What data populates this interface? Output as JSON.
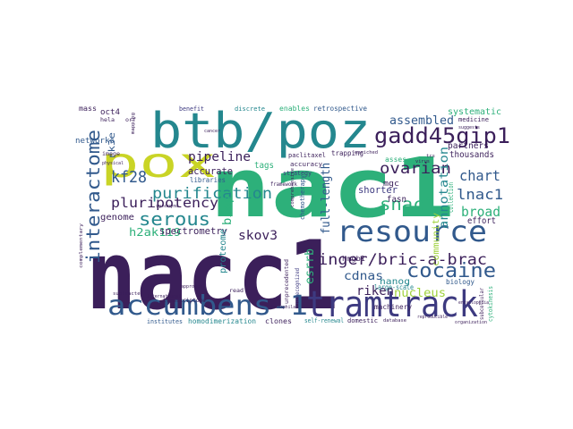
{
  "colors": {
    "background": "#ffffff",
    "palette_note": "viridis",
    "purple": "#3b1f5a",
    "indigo": "#3d3a80",
    "blue": "#31598c",
    "teal": "#24878e",
    "green": "#2db07a",
    "lime": "#9fd23c",
    "yellow": "#c9d426"
  },
  "words": [
    {
      "text": "nacc1",
      "color": "#3b1f5a"
    },
    {
      "text": "nac1",
      "color": "#2db07a"
    },
    {
      "text": "btb/poz",
      "color": "#24878e"
    },
    {
      "text": "pox",
      "color": "#c9d426"
    },
    {
      "text": "tramtrack",
      "color": "#3d3a80"
    },
    {
      "text": "accumbens-1",
      "color": "#31598c"
    },
    {
      "text": "resource",
      "color": "#31598c"
    },
    {
      "text": "gadd45gip1",
      "color": "#3b1f5a"
    },
    {
      "text": "interactome",
      "color": "#31598c"
    },
    {
      "text": "cocaine",
      "color": "#31598c"
    },
    {
      "text": "finger/bric-a-brac",
      "color": "#3b1f5a"
    },
    {
      "text": "purification",
      "color": "#24878e"
    },
    {
      "text": "serous",
      "color": "#24878e"
    },
    {
      "text": "ovarian",
      "color": "#3b1f5a"
    },
    {
      "text": "pluripotency",
      "color": "#3b1f5a"
    },
    {
      "text": "snac1",
      "color": "#2db07a"
    },
    {
      "text": "lnac1",
      "color": "#31598c"
    },
    {
      "text": "kf28",
      "color": "#31598c"
    },
    {
      "text": "chart",
      "color": "#31598c"
    },
    {
      "text": "annotation",
      "color": "#24878e"
    },
    {
      "text": "broad",
      "color": "#2db07a"
    },
    {
      "text": "pipeline",
      "color": "#3b1f5a"
    },
    {
      "text": "assembled",
      "color": "#31598c"
    },
    {
      "text": "skov3",
      "color": "#3b1f5a"
    },
    {
      "text": "bioplex",
      "color": "#2db07a"
    },
    {
      "text": "esrrb",
      "color": "#2db07a"
    },
    {
      "text": "h2ak119",
      "color": "#2db07a"
    },
    {
      "text": "nucleus",
      "color": "#9fd23c"
    },
    {
      "text": "riken",
      "color": "#3b1f5a"
    },
    {
      "text": "cdnas",
      "color": "#31598c"
    },
    {
      "text": "full-length",
      "color": "#31598c"
    },
    {
      "text": "shorter",
      "color": "#3d3a80"
    },
    {
      "text": "community",
      "color": "#9fd23c"
    },
    {
      "text": "nanog",
      "color": "#24878e"
    },
    {
      "text": "accurate",
      "color": "#3b1f5a"
    },
    {
      "text": "spectrometry",
      "color": "#3b1f5a"
    },
    {
      "text": "proteome",
      "color": "#24878e"
    },
    {
      "text": "genome",
      "color": "#3b1f5a"
    },
    {
      "text": "systematic",
      "color": "#2db07a"
    },
    {
      "text": "thousands",
      "color": "#3b1f5a"
    },
    {
      "text": "partners",
      "color": "#3b1f5a"
    },
    {
      "text": "effort",
      "color": "#3b1f5a"
    },
    {
      "text": "fasn",
      "color": "#3b1f5a"
    },
    {
      "text": "tags",
      "color": "#2db07a"
    },
    {
      "text": "mgc",
      "color": "#3b1f5a"
    },
    {
      "text": "rk3e",
      "color": "#31598c"
    },
    {
      "text": "networks",
      "color": "#31598c"
    },
    {
      "text": "oct4",
      "color": "#3b1f5a"
    },
    {
      "text": "libraries",
      "color": "#31598c"
    },
    {
      "text": "collection",
      "color": "#2db07a"
    },
    {
      "text": "hmgb1",
      "color": "#3b1f5a"
    },
    {
      "text": "machinery",
      "color": "#3b1f5a"
    },
    {
      "text": "large-scale",
      "color": "#24878e"
    },
    {
      "text": "biology",
      "color": "#31598c"
    },
    {
      "text": "enables",
      "color": "#2db07a"
    },
    {
      "text": "retrospective",
      "color": "#31598c"
    },
    {
      "text": "mass",
      "color": "#3b1f5a"
    },
    {
      "text": "benefit",
      "color": "#3d3a80"
    },
    {
      "text": "discrete",
      "color": "#24878e"
    },
    {
      "text": "medicine",
      "color": "#3b1f5a"
    },
    {
      "text": "paclitaxel",
      "color": "#3b1f5a"
    },
    {
      "text": "trapping",
      "color": "#3b1f5a"
    },
    {
      "text": "asses",
      "color": "#2db07a"
    },
    {
      "text": "accuracy",
      "color": "#3b1f5a"
    },
    {
      "text": "strategy",
      "color": "#3d3a80"
    },
    {
      "text": "chemotherapy",
      "color": "#31598c"
    },
    {
      "text": "framework",
      "color": "#3b1f5a"
    },
    {
      "text": "clones",
      "color": "#3b1f5a"
    },
    {
      "text": "homodimerization",
      "color": "#24878e"
    },
    {
      "text": "institutes",
      "color": "#31598c"
    },
    {
      "text": "domestic",
      "color": "#3b1f5a"
    },
    {
      "text": "self-renewal",
      "color": "#24878e"
    },
    {
      "text": "cytokinesis",
      "color": "#2db07a"
    },
    {
      "text": "subcellular",
      "color": "#3b1f5a"
    },
    {
      "text": "unrecognized",
      "color": "#3d3a80"
    },
    {
      "text": "transcriptome",
      "color": "#3b1f5a"
    },
    {
      "text": "read",
      "color": "#3b1f5a"
    },
    {
      "text": "image",
      "color": "#3b1f5a"
    },
    {
      "text": "hela",
      "color": "#3b1f5a"
    },
    {
      "text": "orf",
      "color": "#3b1f5a"
    },
    {
      "text": "complementary",
      "color": "#3b1f5a"
    },
    {
      "text": "subtracted",
      "color": "#3b1f5a"
    },
    {
      "text": "international",
      "color": "#3b1f5a"
    },
    {
      "text": "database",
      "color": "#3b1f5a"
    },
    {
      "text": "enriched",
      "color": "#3b1f5a"
    },
    {
      "text": "tcs",
      "color": "#3b1f5a"
    },
    {
      "text": "virus",
      "color": "#3b1f5a"
    },
    {
      "text": "physical",
      "color": "#3b1f5a"
    },
    {
      "text": "mapping",
      "color": "#3b1f5a"
    },
    {
      "text": "unprecedented",
      "color": "#3b1f5a"
    },
    {
      "text": "comprehensive",
      "color": "#3b1f5a"
    },
    {
      "text": "approach",
      "color": "#3b1f5a"
    },
    {
      "text": "organization",
      "color": "#3b1f5a"
    },
    {
      "text": "encyclopedia",
      "color": "#3b1f5a"
    },
    {
      "text": "reproducible",
      "color": "#3b1f5a"
    },
    {
      "text": "synonyms",
      "color": "#3b1f5a"
    },
    {
      "text": "suggests",
      "color": "#3b1f5a"
    },
    {
      "text": "drosophila",
      "color": "#3b1f5a"
    },
    {
      "text": "cancer",
      "color": "#3b1f5a"
    }
  ]
}
